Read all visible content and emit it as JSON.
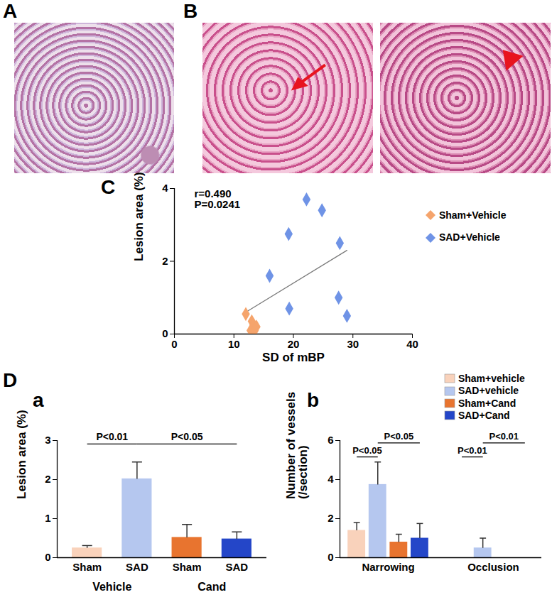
{
  "image_panels": [
    {
      "label": "A"
    },
    {
      "label": "B"
    }
  ],
  "chart_data": [
    {
      "panel": "C",
      "type": "scatter",
      "xlabel": "SD of mBP",
      "ylabel": "Lesion area (%)",
      "xlim": [
        0,
        40
      ],
      "xticks": [
        0,
        10,
        20,
        30,
        40
      ],
      "ylim": [
        0,
        4
      ],
      "yticks": [
        0,
        2,
        4
      ],
      "legend": "right",
      "annotations": [
        "r=0.490",
        "P=0.0241"
      ],
      "trend_line": {
        "x": [
          12,
          29
        ],
        "values": [
          0.6,
          2.3
        ]
      },
      "series": [
        {
          "name": "Sham+Vehicle",
          "color": "#f5a46c",
          "marker": "diamond",
          "x": [
            12.0,
            12.8,
            13.0,
            13.3,
            13.8,
            13.5
          ],
          "values": [
            0.55,
            0.1,
            0.35,
            0.25,
            0.2,
            0.1
          ]
        },
        {
          "name": "SAD+Vehicle",
          "color": "#6f93e6",
          "marker": "diamond",
          "x": [
            22.2,
            24.8,
            19.2,
            27.8,
            16.0,
            19.3,
            27.6,
            29.0
          ],
          "values": [
            3.7,
            3.4,
            2.75,
            2.5,
            1.6,
            0.7,
            1.0,
            0.5
          ]
        }
      ]
    },
    {
      "panel": "a",
      "group": "D",
      "type": "bar",
      "categories": [
        "Sham",
        "SAD",
        "Sham",
        "SAD"
      ],
      "groups": [
        {
          "label": "Vehicle",
          "from": 0,
          "to": 1
        },
        {
          "label": "Cand",
          "from": 2,
          "to": 3
        }
      ],
      "values": [
        0.25,
        2.02,
        0.52,
        0.48
      ],
      "errors": [
        0.06,
        0.43,
        0.33,
        0.18
      ],
      "colors": [
        "#f9d2bb",
        "#b5c7ef",
        "#e8742f",
        "#2446c8"
      ],
      "ylabel": "Lesion area (%)",
      "ylim": [
        0,
        3
      ],
      "yticks": [
        0,
        1,
        2,
        3
      ],
      "annotations": [
        {
          "text": "P<0.01",
          "from": 0,
          "to": 1
        },
        {
          "text": "P<0.05",
          "from": 1,
          "to": 3
        }
      ]
    },
    {
      "panel": "b",
      "group": "D",
      "type": "bar",
      "categories": [
        "Narrowing",
        "Occlusion"
      ],
      "ylabel": "Number of vessels\n(/section)",
      "ylim": [
        0,
        6
      ],
      "yticks": [
        0,
        2,
        4,
        6
      ],
      "legend": "top-right",
      "series": [
        {
          "name": "Sham+vehicle",
          "color": "#f9d2bb",
          "values": [
            1.4,
            0
          ],
          "errors": [
            0.4,
            0
          ]
        },
        {
          "name": "SAD+vehicle",
          "color": "#b5c7ef",
          "values": [
            3.75,
            0.5
          ],
          "errors": [
            1.15,
            0.5
          ]
        },
        {
          "name": "Sham+Cand",
          "color": "#e8742f",
          "values": [
            0.8,
            0
          ],
          "errors": [
            0.4,
            0
          ]
        },
        {
          "name": "SAD+Cand",
          "color": "#2446c8",
          "values": [
            1.0,
            0
          ],
          "errors": [
            0.75,
            0
          ]
        }
      ],
      "annotations": [
        {
          "text": "P<0.05",
          "category": 0,
          "from": 0,
          "to": 1
        },
        {
          "text": "P<0.05",
          "category": 0,
          "from": 1,
          "to": 3
        },
        {
          "text": "P<0.01",
          "category": 1,
          "from": 0,
          "to": 1
        },
        {
          "text": "P<0.01",
          "category": 1,
          "from": 1,
          "to": 3
        }
      ]
    }
  ]
}
